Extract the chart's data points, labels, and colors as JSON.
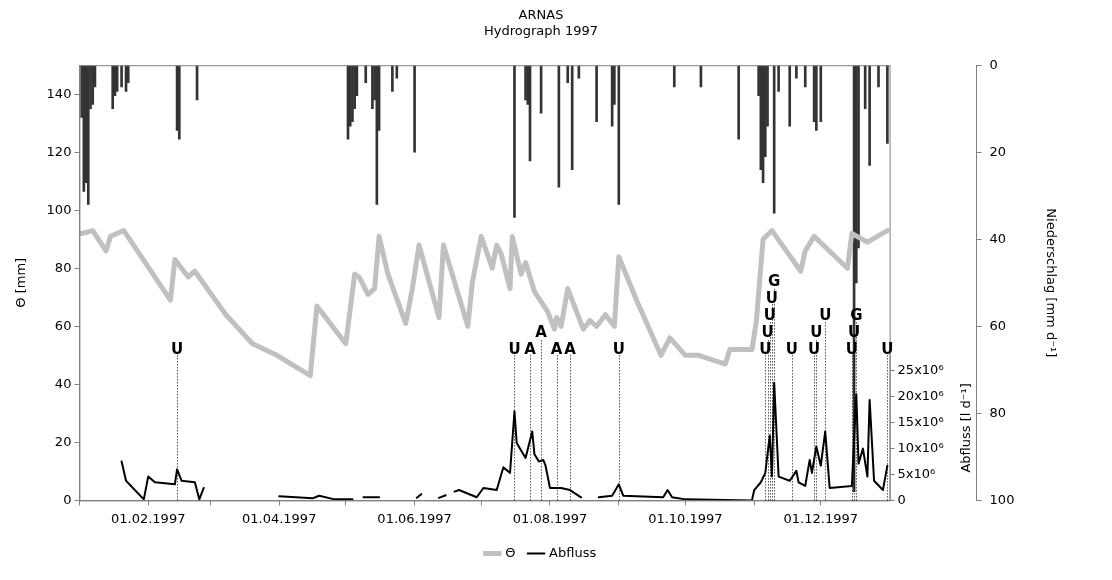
{
  "chart_data": {
    "type": "line",
    "title": "ARNAS",
    "subtitle": "Hydrograph 1997",
    "ylabel": "Θ [mm]",
    "y2label": "Niederschlag [mm d⁻¹]",
    "y3label": "Abfluss [l d⁻¹]",
    "xlim": [
      "1997-01-01",
      "1998-01-01"
    ],
    "xticks": [
      {
        "value": "1997-01-01",
        "label": null
      },
      {
        "value": "1997-02-01",
        "label": "01.02.1997"
      },
      {
        "value": "1997-03-01",
        "label": null
      },
      {
        "value": "1997-04-01",
        "label": "01.04.1997"
      },
      {
        "value": "1997-05-01",
        "label": null
      },
      {
        "value": "1997-06-01",
        "label": "01.06.1997"
      },
      {
        "value": "1997-07-01",
        "label": null
      },
      {
        "value": "1997-08-01",
        "label": "01.08.1997"
      },
      {
        "value": "1997-09-01",
        "label": null
      },
      {
        "value": "1997-10-01",
        "label": "01.10.1997"
      },
      {
        "value": "1997-11-01",
        "label": null
      },
      {
        "value": "1997-12-01",
        "label": "01.12.1997"
      }
    ],
    "ylim": [
      0,
      150
    ],
    "yticks": [
      0,
      20,
      40,
      60,
      80,
      100,
      120,
      140
    ],
    "y2lim": [
      100,
      0
    ],
    "y2ticks": [
      0,
      20,
      40,
      60,
      80,
      100
    ],
    "y3lim": [
      0,
      28000000
    ],
    "y3ticks": [
      0,
      {
        "value": 5000000,
        "label": "5x10⁶"
      },
      {
        "value": 10000000,
        "label": "10x10⁶"
      },
      {
        "value": 15000000,
        "label": "15x10⁶"
      },
      {
        "value": 20000000,
        "label": "20x10⁶"
      },
      {
        "value": 25000000,
        "label": "25x10⁶"
      }
    ],
    "legend": "bottom",
    "series": [
      {
        "type": "line",
        "name": "Θ",
        "color": "#c0c0c0",
        "x": [
          "1997-01-02",
          "1997-01-07",
          "1997-01-13",
          "1997-01-15",
          "1997-01-21",
          "1997-02-11",
          "1997-02-13",
          "1997-02-19",
          "1997-02-22",
          "1997-03-08",
          "1997-03-20",
          "1997-03-31",
          "1997-04-15",
          "1997-04-18",
          "1997-05-01",
          "1997-05-05",
          "1997-05-07",
          "1997-05-11",
          "1997-05-14",
          "1997-05-16",
          "1997-05-20",
          "1997-05-28",
          "1997-05-31",
          "1997-06-03",
          "1997-06-12",
          "1997-06-14",
          "1997-06-25",
          "1997-06-27",
          "1997-07-01",
          "1997-07-06",
          "1997-07-08",
          "1997-07-10",
          "1997-07-14",
          "1997-07-15",
          "1997-07-19",
          "1997-07-21",
          "1997-07-25",
          "1997-07-31",
          "1997-08-03",
          "1997-08-04",
          "1997-08-06",
          "1997-08-09",
          "1997-08-16",
          "1997-08-19",
          "1997-08-22",
          "1997-08-26",
          "1997-08-30",
          "1997-09-01",
          "1997-09-09",
          "1997-09-20",
          "1997-09-24",
          "1997-10-01",
          "1997-10-07",
          "1997-10-19",
          "1997-10-21",
          "1997-10-31",
          "1997-11-02",
          "1997-11-05",
          "1997-11-09",
          "1997-11-22",
          "1997-11-24",
          "1997-11-28",
          "1997-12-13",
          "1997-12-15",
          "1997-12-22",
          "1997-12-31"
        ],
        "values": [
          92,
          93,
          86,
          91,
          93,
          69,
          83,
          77,
          79,
          64,
          54,
          50,
          43,
          67,
          54,
          78,
          77,
          71,
          73,
          91,
          78,
          61,
          73,
          88,
          63,
          88,
          60,
          75,
          91,
          80,
          88,
          85,
          73,
          91,
          78,
          82,
          72,
          65,
          59,
          63,
          60,
          73,
          59,
          62,
          60,
          64,
          60,
          84,
          69,
          50,
          56,
          50,
          50,
          47,
          52,
          52,
          62,
          90,
          93,
          79,
          86,
          91,
          80,
          92,
          89,
          93
        ]
      },
      {
        "type": "line",
        "name": "Abfluss",
        "color": "#000000",
        "axis": "y3",
        "x": [
          "1997-01-20",
          "1997-01-22",
          "1997-01-30",
          "1997-02-01",
          "1997-02-04",
          "1997-02-13",
          "1997-02-14",
          "1997-02-16",
          "1997-02-22",
          "1997-02-24",
          "1997-02-26",
          "1997-03-15",
          "1997-04-01",
          "1997-04-16",
          "1997-04-19",
          "1997-04-26",
          "1997-05-04",
          "1997-05-06",
          "1997-05-09",
          "1997-05-16",
          "1997-05-25",
          "1997-06-02",
          "1997-06-04",
          "1997-06-08",
          "1997-06-12",
          "1997-06-15",
          "1997-06-17",
          "1997-06-19",
          "1997-06-21",
          "1997-06-29",
          "1997-07-02",
          "1997-07-08",
          "1997-07-11",
          "1997-07-14",
          "1997-07-16",
          "1997-07-17",
          "1997-07-21",
          "1997-07-24",
          "1997-07-25",
          "1997-07-27",
          "1997-07-29",
          "1997-07-30",
          "1997-08-01",
          "1997-08-06",
          "1997-08-10",
          "1997-08-15",
          "1997-08-19",
          "1997-08-23",
          "1997-08-29",
          "1997-09-01",
          "1997-09-03",
          "1997-09-21",
          "1997-09-23",
          "1997-09-25",
          "1997-10-01",
          "1997-10-31",
          "1997-11-01",
          "1997-11-04",
          "1997-11-06",
          "1997-11-08",
          "1997-11-09",
          "1997-11-10",
          "1997-11-12",
          "1997-11-17",
          "1997-11-20",
          "1997-11-21",
          "1997-11-24",
          "1997-11-26",
          "1997-11-27",
          "1997-11-29",
          "1997-12-01",
          "1997-12-03",
          "1997-12-05",
          "1997-12-15",
          "1997-12-17",
          "1997-12-18",
          "1997-12-20",
          "1997-12-22",
          "1997-12-23",
          "1997-12-25",
          "1997-12-29",
          "1997-12-31"
        ],
        "values": [
          7500000,
          3800000,
          200000,
          4600000,
          3500000,
          3100000,
          6000000,
          3800000,
          3500000,
          200000,
          2400000,
          null,
          800000,
          400000,
          900000,
          200000,
          200000,
          null,
          600000,
          600000,
          null,
          500000,
          1200000,
          null,
          500000,
          1000000,
          null,
          1700000,
          2000000,
          600000,
          2400000,
          2000000,
          6400000,
          5300000,
          17200000,
          11100000,
          8200000,
          13300000,
          8900000,
          7500000,
          7800000,
          6700000,
          2400000,
          2400000,
          2000000,
          600000,
          null,
          600000,
          900000,
          3100000,
          900000,
          600000,
          2000000,
          600000,
          200000,
          0,
          2000000,
          3500000,
          5300000,
          12500000,
          4600000,
          22700000,
          4600000,
          3800000,
          5700000,
          3500000,
          2800000,
          7800000,
          5300000,
          10400000,
          6700000,
          13300000,
          2400000,
          2800000,
          20500000,
          7100000,
          10000000,
          4600000,
          19400000,
          3800000,
          2000000,
          6700000
        ]
      },
      {
        "type": "bar",
        "color": "#333333",
        "axis": "y2",
        "x": [
          "1997-01-02",
          "1997-01-03",
          "1997-01-04",
          "1997-01-05",
          "1997-01-06",
          "1997-01-07",
          "1997-01-08",
          "1997-01-16",
          "1997-01-17",
          "1997-01-18",
          "1997-01-20",
          "1997-01-22",
          "1997-01-23",
          "1997-02-14",
          "1997-02-15",
          "1997-02-23",
          "1997-05-02",
          "1997-05-03",
          "1997-05-04",
          "1997-05-05",
          "1997-05-06",
          "1997-05-10",
          "1997-05-13",
          "1997-05-14",
          "1997-05-15",
          "1997-05-16",
          "1997-05-22",
          "1997-05-24",
          "1997-06-01",
          "1997-07-16",
          "1997-07-21",
          "1997-07-22",
          "1997-07-23",
          "1997-07-28",
          "1997-08-05",
          "1997-08-09",
          "1997-08-11",
          "1997-08-14",
          "1997-08-22",
          "1997-08-29",
          "1997-08-30",
          "1997-09-01",
          "1997-09-26",
          "1997-10-08",
          "1997-10-25",
          "1997-11-03",
          "1997-11-04",
          "1997-11-05",
          "1997-11-06",
          "1997-11-07",
          "1997-11-10",
          "1997-11-12",
          "1997-11-17",
          "1997-11-20",
          "1997-11-24",
          "1997-11-28",
          "1997-11-29",
          "1997-12-01",
          "1997-12-16",
          "1997-12-17",
          "1997-12-18",
          "1997-12-21",
          "1997-12-23",
          "1997-12-27",
          "1997-12-31"
        ],
        "values": [
          12,
          29,
          27,
          32,
          10,
          9,
          5,
          10,
          7,
          6,
          5,
          6,
          4,
          15,
          17,
          8,
          17,
          14,
          13,
          10,
          7,
          4,
          10,
          8,
          32,
          15,
          6,
          3,
          20,
          35,
          8,
          9,
          22,
          11,
          28,
          4,
          24,
          3,
          13,
          14,
          9,
          32,
          5,
          5,
          17,
          7,
          24,
          27,
          21,
          14,
          34,
          6,
          14,
          3,
          5,
          13,
          15,
          13,
          98,
          50,
          42,
          10,
          23,
          5,
          18
        ]
      }
    ],
    "ref_lines": [
      {
        "axis": "x",
        "value": "1997-02-14",
        "label": "U",
        "color": "#000000",
        "line_style": "dotted"
      },
      {
        "axis": "x",
        "value": "1997-07-16",
        "label": "U",
        "color": "#000000",
        "line_style": "dotted"
      },
      {
        "axis": "x",
        "value": "1997-07-23",
        "label": "A",
        "color": "#000000",
        "line_style": "dotted"
      },
      {
        "axis": "x",
        "value": "1997-07-28",
        "label": "A",
        "color": "#000000",
        "line_style": "dotted"
      },
      {
        "axis": "x",
        "value": "1997-08-04",
        "label": "A",
        "color": "#000000",
        "line_style": "dotted"
      },
      {
        "axis": "x",
        "value": "1997-08-10",
        "label": "A",
        "color": "#000000",
        "line_style": "dotted"
      },
      {
        "axis": "x",
        "value": "1997-09-01",
        "label": "U",
        "color": "#000000",
        "line_style": "dotted"
      },
      {
        "axis": "x",
        "value": "1997-11-06",
        "label": "U",
        "color": "#000000",
        "line_style": "dotted"
      },
      {
        "axis": "x",
        "value": "1997-11-07",
        "label": "U",
        "color": "#000000",
        "line_style": "dotted"
      },
      {
        "axis": "x",
        "value": "1997-11-08",
        "label": "U",
        "color": "#000000",
        "line_style": "dotted"
      },
      {
        "axis": "x",
        "value": "1997-11-09",
        "label": "U",
        "color": "#000000",
        "line_style": "dotted"
      },
      {
        "axis": "x",
        "value": "1997-11-10",
        "label": "G",
        "color": "#000000",
        "line_style": "dotted"
      },
      {
        "axis": "x",
        "value": "1997-11-18",
        "label": "U",
        "color": "#000000",
        "line_style": "dotted"
      },
      {
        "axis": "x",
        "value": "1997-11-28",
        "label": "U",
        "color": "#000000",
        "line_style": "dotted"
      },
      {
        "axis": "x",
        "value": "1997-11-29",
        "label": "U",
        "color": "#000000",
        "line_style": "dotted"
      },
      {
        "axis": "x",
        "value": "1997-12-03",
        "label": "U",
        "color": "#000000",
        "line_style": "dotted"
      },
      {
        "axis": "x",
        "value": "1997-12-15",
        "label": "U",
        "color": "#000000",
        "line_style": "dotted"
      },
      {
        "axis": "x",
        "value": "1997-12-16",
        "label": "U",
        "color": "#000000",
        "line_style": "dotted"
      },
      {
        "axis": "x",
        "value": "1997-12-17",
        "label": "G",
        "color": "#000000",
        "line_style": "dotted"
      },
      {
        "axis": "x",
        "value": "1997-12-31",
        "label": "U",
        "color": "#000000",
        "line_style": "dotted"
      }
    ]
  }
}
